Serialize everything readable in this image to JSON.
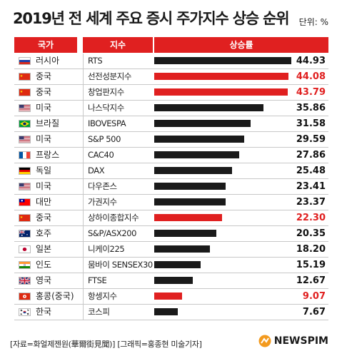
{
  "title": "2019년 전 세계 주요 증시 주가지수 상승 순위",
  "unit": "단위: %",
  "headers": {
    "country": "국가",
    "index": "지수",
    "rise": "상승률"
  },
  "source": "[자료=화얼제젠원(華爾街見聞)] [그래픽=홍종현 미술기자]",
  "logo": "NEWSPIM",
  "colors": {
    "accent": "#e02020",
    "bar": "#1a1a1a"
  },
  "chart_data": {
    "type": "bar",
    "orientation": "horizontal",
    "title": "2019년 전 세계 주요 증시 주가지수 상승 순위",
    "unit": "%",
    "rows": [
      {
        "country": "러시아",
        "flag": "russia-flag-icon",
        "index": "RTS",
        "value": "44.93",
        "highlight": false
      },
      {
        "country": "중국",
        "flag": "china-flag-icon",
        "index": "선전성분지수",
        "value": "44.08",
        "highlight": true
      },
      {
        "country": "중국",
        "flag": "china-flag-icon",
        "index": "창업판지수",
        "value": "43.79",
        "highlight": true
      },
      {
        "country": "미국",
        "flag": "usa-flag-icon",
        "index": "나스닥지수",
        "value": "35.86",
        "highlight": false
      },
      {
        "country": "브라질",
        "flag": "brazil-flag-icon",
        "index": "IBOVESPA",
        "value": "31.58",
        "highlight": false
      },
      {
        "country": "미국",
        "flag": "usa-flag-icon",
        "index": "S&P 500",
        "value": "29.59",
        "highlight": false
      },
      {
        "country": "프랑스",
        "flag": "france-flag-icon",
        "index": "CAC40",
        "value": "27.86",
        "highlight": false
      },
      {
        "country": "독일",
        "flag": "germany-flag-icon",
        "index": "DAX",
        "value": "25.48",
        "highlight": false
      },
      {
        "country": "미국",
        "flag": "usa-flag-icon",
        "index": "다우존스",
        "value": "23.41",
        "highlight": false
      },
      {
        "country": "대만",
        "flag": "taiwan-flag-icon",
        "index": "가권지수",
        "value": "23.37",
        "highlight": false
      },
      {
        "country": "중국",
        "flag": "china-flag-icon",
        "index": "상하이종합지수",
        "value": "22.30",
        "highlight": true
      },
      {
        "country": "호주",
        "flag": "australia-flag-icon",
        "index": "S&P/ASX200",
        "value": "20.35",
        "highlight": false
      },
      {
        "country": "일본",
        "flag": "japan-flag-icon",
        "index": "니케이225",
        "value": "18.20",
        "highlight": false
      },
      {
        "country": "인도",
        "flag": "india-flag-icon",
        "index": "뭄바이 SENSEX30",
        "value": "15.19",
        "highlight": false
      },
      {
        "country": "영국",
        "flag": "uk-flag-icon",
        "index": "FTSE",
        "value": "12.67",
        "highlight": false
      },
      {
        "country": "홍콩(중국)",
        "flag": "hongkong-flag-icon",
        "index": "항셍지수",
        "value": "9.07",
        "highlight": true
      },
      {
        "country": "한국",
        "flag": "korea-flag-icon",
        "index": "코스피",
        "value": "7.67",
        "highlight": false
      }
    ]
  }
}
